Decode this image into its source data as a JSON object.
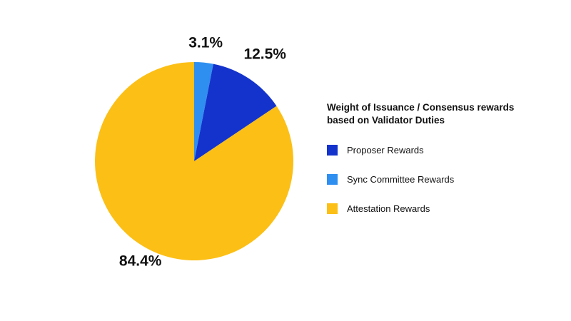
{
  "chart_data": {
    "type": "pie",
    "title": "",
    "legend_title": "Weight of Issuance / Consensus rewards based on Validator Duties",
    "legend_placement": "right",
    "slices": [
      {
        "name": "Sync Committee Rewards",
        "value": 3.1,
        "label": "3.1%",
        "color": "#2f8ff0"
      },
      {
        "name": "Proposer Rewards",
        "value": 12.5,
        "label": "12.5%",
        "color": "#1433cc"
      },
      {
        "name": "Attestation Rewards",
        "value": 84.4,
        "label": "84.4%",
        "color": "#fcbf15"
      }
    ],
    "legend_order": [
      "Proposer Rewards",
      "Sync Committee Rewards",
      "Attestation Rewards"
    ]
  }
}
